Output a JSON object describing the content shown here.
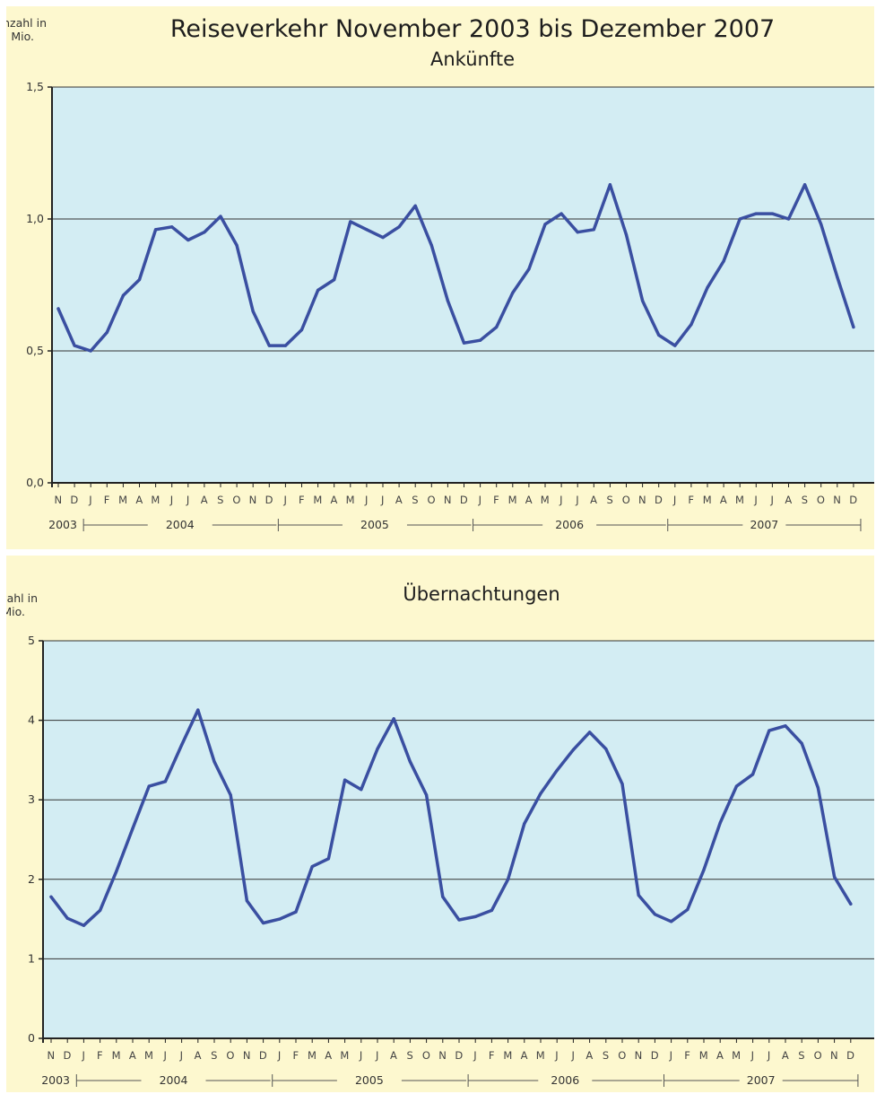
{
  "header": {
    "title": "Reiseverkehr November 2003 bis Dezember 2007"
  },
  "colors": {
    "panel_background": "#fdf8cf",
    "plot_background": "#d3edf3",
    "line": "#3a4fa1",
    "grid": "#333333"
  },
  "chart_data": [
    {
      "type": "line",
      "title": "Ankünfte",
      "ylabel": "Anzahl in Mio.",
      "ylim": [
        0,
        1.5
      ],
      "yticks": [
        "0,0",
        "0,5",
        "1,0",
        "1,5"
      ],
      "grid": "horizontal",
      "x": [
        "N",
        "D",
        "J",
        "F",
        "M",
        "A",
        "M",
        "J",
        "J",
        "A",
        "S",
        "O",
        "N",
        "D",
        "J",
        "F",
        "M",
        "A",
        "M",
        "J",
        "J",
        "A",
        "S",
        "O",
        "N",
        "D",
        "J",
        "F",
        "M",
        "A",
        "M",
        "J",
        "J",
        "A",
        "S",
        "O",
        "N",
        "D",
        "J",
        "F",
        "M",
        "A",
        "M",
        "J",
        "J",
        "A",
        "S",
        "O",
        "N",
        "D"
      ],
      "years": [
        "2003",
        "2004",
        "2005",
        "2006",
        "2007"
      ],
      "series": [
        {
          "values": [
            0.66,
            0.52,
            0.5,
            0.57,
            0.71,
            0.77,
            0.96,
            0.97,
            0.92,
            0.95,
            1.01,
            0.9,
            0.65,
            0.52,
            0.52,
            0.58,
            0.73,
            0.77,
            0.99,
            0.96,
            0.93,
            0.97,
            1.05,
            0.9,
            0.69,
            0.53,
            0.54,
            0.59,
            0.72,
            0.81,
            0.98,
            1.02,
            0.95,
            0.96,
            1.13,
            0.94,
            0.69,
            0.56,
            0.52,
            0.6,
            0.74,
            0.84,
            1.0,
            1.02,
            1.02,
            1.0,
            1.13,
            0.98,
            0.78,
            0.59
          ]
        }
      ]
    },
    {
      "type": "line",
      "title": "Übernachtungen",
      "ylabel": "Anzahl in Mio.",
      "ylim": [
        0,
        5
      ],
      "yticks": [
        "0",
        "1",
        "2",
        "3",
        "4",
        "5"
      ],
      "grid": "horizontal",
      "x": [
        "N",
        "D",
        "J",
        "F",
        "M",
        "A",
        "M",
        "J",
        "J",
        "A",
        "S",
        "O",
        "N",
        "D",
        "J",
        "F",
        "M",
        "A",
        "M",
        "J",
        "J",
        "A",
        "S",
        "O",
        "N",
        "D",
        "J",
        "F",
        "M",
        "A",
        "M",
        "J",
        "J",
        "A",
        "S",
        "O",
        "N",
        "D",
        "J",
        "F",
        "M",
        "A",
        "M",
        "J",
        "J",
        "A",
        "S",
        "O",
        "N",
        "D"
      ],
      "years": [
        "2003",
        "2004",
        "2005",
        "2006",
        "2007"
      ],
      "series": [
        {
          "values": [
            1.78,
            1.51,
            1.42,
            1.61,
            2.1,
            2.64,
            3.17,
            3.23,
            3.69,
            4.13,
            3.48,
            3.06,
            1.73,
            1.45,
            1.5,
            1.59,
            2.16,
            2.26,
            3.25,
            3.13,
            3.64,
            4.02,
            3.48,
            3.06,
            1.78,
            1.49,
            1.53,
            1.61,
            2.0,
            2.7,
            3.08,
            3.37,
            3.63,
            3.85,
            3.64,
            3.2,
            1.8,
            1.56,
            1.47,
            1.62,
            2.12,
            2.71,
            3.17,
            3.32,
            3.87,
            3.93,
            3.71,
            3.15,
            2.03,
            1.69
          ]
        }
      ]
    }
  ]
}
